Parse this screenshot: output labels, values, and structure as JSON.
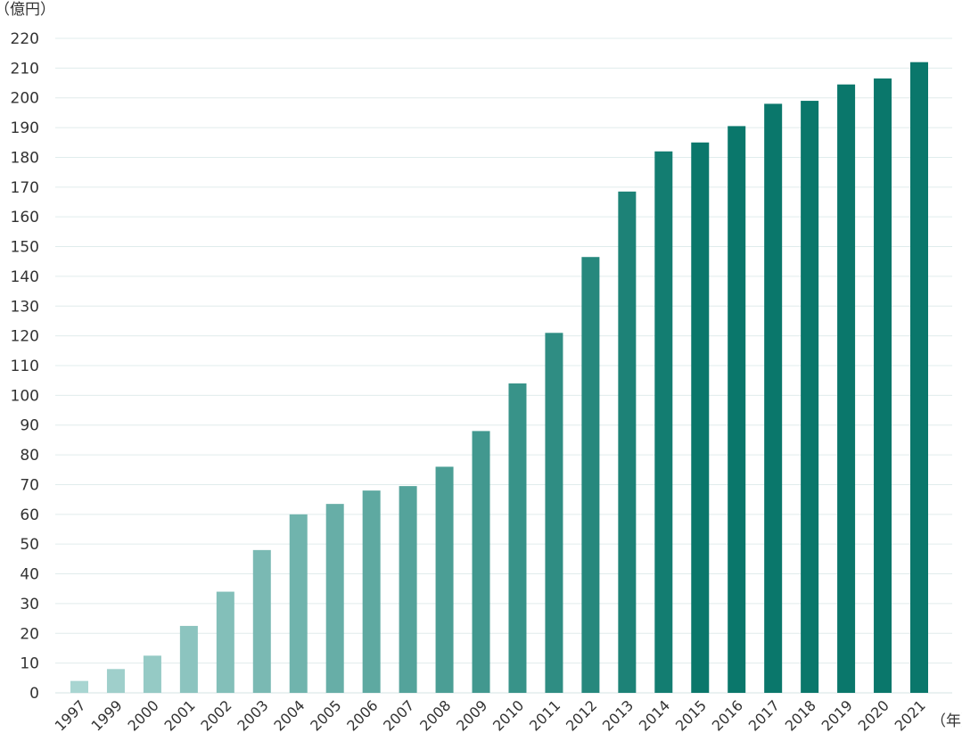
{
  "chart_data": {
    "type": "bar",
    "title": "",
    "ylabel": "（億円）",
    "xlabel": "（年）",
    "ylim": [
      0,
      220
    ],
    "yticks": [
      0,
      10,
      20,
      30,
      40,
      50,
      60,
      70,
      80,
      90,
      100,
      110,
      120,
      130,
      140,
      150,
      160,
      170,
      180,
      190,
      200,
      210,
      220
    ],
    "grid": true,
    "categories": [
      "1997",
      "1999",
      "2000",
      "2001",
      "2002",
      "2003",
      "2004",
      "2005",
      "2006",
      "2007",
      "2008",
      "2009",
      "2010",
      "2011",
      "2012",
      "2013",
      "2014",
      "2015",
      "2016",
      "2017",
      "2018",
      "2019",
      "2020",
      "2021"
    ],
    "values": [
      4,
      8,
      12.5,
      22.5,
      34,
      48,
      60,
      63.5,
      68,
      69.5,
      76,
      88,
      104,
      121,
      146.5,
      168.5,
      182,
      185,
      190.5,
      198,
      199,
      204.5,
      206.5,
      212
    ],
    "colors": {
      "start": "#a8d5d1",
      "end": "#0a776b",
      "grid": "#e0ecec",
      "text": "#333333"
    }
  }
}
